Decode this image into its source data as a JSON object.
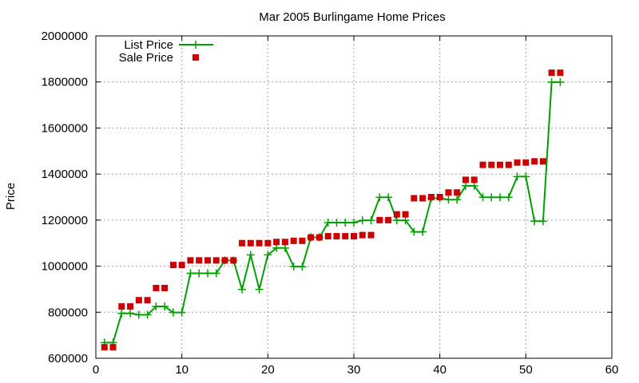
{
  "chart_data": {
    "type": "line",
    "title": "Mar 2005 Burlingame Home Prices",
    "xlabel": "",
    "ylabel": "Price",
    "xlim": [
      0,
      60
    ],
    "ylim": [
      600000,
      2000000
    ],
    "xticks": [
      0,
      10,
      20,
      30,
      40,
      50,
      60
    ],
    "yticks": [
      600000,
      800000,
      1000000,
      1200000,
      1400000,
      1600000,
      1800000,
      2000000
    ],
    "grid": true,
    "legend_position": "top-left",
    "x": [
      1,
      2,
      3,
      4,
      5,
      6,
      7,
      8,
      9,
      10,
      11,
      12,
      13,
      14,
      15,
      16,
      17,
      18,
      19,
      20,
      21,
      22,
      23,
      24,
      25,
      26,
      27,
      28,
      29,
      30,
      31,
      32,
      33,
      34,
      35,
      36,
      37,
      38,
      39,
      40,
      41,
      42,
      43,
      44,
      45,
      46,
      47,
      48,
      49,
      50,
      51,
      52,
      53,
      54
    ],
    "series": [
      {
        "name": "List Price",
        "style": "line-with-plus-markers",
        "color": "#00a000",
        "values": [
          668000,
          668000,
          795000,
          795000,
          789000,
          789000,
          825000,
          825000,
          799000,
          799000,
          969000,
          969000,
          969000,
          969000,
          1025000,
          1025000,
          899000,
          1049000,
          899000,
          1049000,
          1079000,
          1079000,
          998000,
          998000,
          1125000,
          1125000,
          1189000,
          1189000,
          1189000,
          1189000,
          1199000,
          1199000,
          1299000,
          1299000,
          1199000,
          1199000,
          1149000,
          1149000,
          1295000,
          1295000,
          1289000,
          1289000,
          1349000,
          1349000,
          1299000,
          1299000,
          1299000,
          1299000,
          1389000,
          1389000,
          1195000,
          1195000,
          1799000,
          1799000
        ]
      },
      {
        "name": "Sale Price",
        "style": "square-markers",
        "color": "#cc0000",
        "values": [
          648000,
          648000,
          825000,
          825000,
          852000,
          852000,
          905000,
          905000,
          1005000,
          1005000,
          1025000,
          1025000,
          1025000,
          1025000,
          1025000,
          1025000,
          1100000,
          1100000,
          1100000,
          1100000,
          1105000,
          1105000,
          1110000,
          1110000,
          1125000,
          1125000,
          1130000,
          1130000,
          1130000,
          1130000,
          1135000,
          1135000,
          1200000,
          1200000,
          1225000,
          1225000,
          1295000,
          1295000,
          1300000,
          1300000,
          1320000,
          1320000,
          1375000,
          1375000,
          1440000,
          1440000,
          1440000,
          1440000,
          1450000,
          1450000,
          1455000,
          1455000,
          1840000,
          1840000
        ]
      }
    ]
  }
}
